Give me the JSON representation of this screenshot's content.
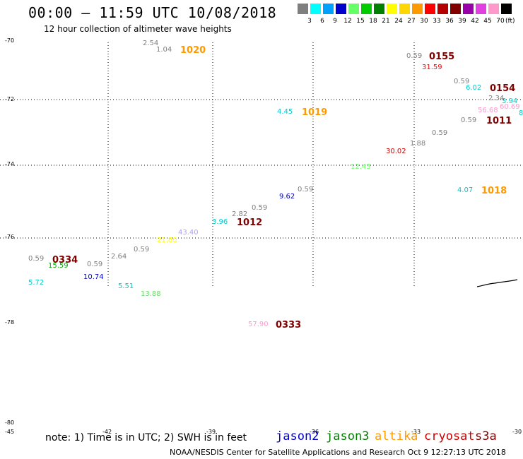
{
  "header": {
    "title": "00:00 – 11:59 UTC 10/08/2018",
    "subtitle": "12 hour collection of altimeter wave heights"
  },
  "color_scale": {
    "unit": "(ft)",
    "swatches": [
      {
        "color": "#7f7f7f",
        "label": "3"
      },
      {
        "color": "#00ffff",
        "label": "6"
      },
      {
        "color": "#00a0ff",
        "label": "9"
      },
      {
        "color": "#0000cd",
        "label": "12"
      },
      {
        "color": "#66ff66",
        "label": "15"
      },
      {
        "color": "#00cc00",
        "label": "18"
      },
      {
        "color": "#008000",
        "label": "21"
      },
      {
        "color": "#ffff00",
        "label": "24"
      },
      {
        "color": "#ffd700",
        "label": "27"
      },
      {
        "color": "#ff9900",
        "label": "30"
      },
      {
        "color": "#ff0000",
        "label": "33"
      },
      {
        "color": "#b30000",
        "label": "36"
      },
      {
        "color": "#800000",
        "label": "39"
      },
      {
        "color": "#9900aa",
        "label": "42"
      },
      {
        "color": "#e040e0",
        "label": "45"
      },
      {
        "color": "#ff99cc",
        "label": "70"
      },
      {
        "color": "#000000",
        "label": ""
      }
    ]
  },
  "y_axis_labels": [
    "-70",
    "-72",
    "-74",
    "-76",
    "-78",
    "-80"
  ],
  "x_axis_labels": [
    "-45",
    "-42",
    "-39",
    "-36",
    "-33",
    "-30"
  ],
  "wave_heights": [
    {
      "text": "2.54",
      "color": "#7f7f7f"
    },
    {
      "text": "1.04",
      "color": "#7f7f7f"
    },
    {
      "text": "0.59",
      "color": "#7f7f7f"
    },
    {
      "text": "31.59",
      "color": "#ff0000"
    },
    {
      "text": "0.59",
      "color": "#7f7f7f"
    },
    {
      "text": "6.02",
      "color": "#00cccc"
    },
    {
      "text": "2.34",
      "color": "#7f7f7f"
    },
    {
      "text": "3.94",
      "color": "#00cccc"
    },
    {
      "text": "56.68",
      "color": "#ff99cc"
    },
    {
      "text": "60.69",
      "color": "#ff99cc"
    },
    {
      "text": "8",
      "color": "#00cccc"
    },
    {
      "text": "0.59",
      "color": "#7f7f7f"
    },
    {
      "text": "4.45",
      "color": "#00cccc"
    },
    {
      "text": "0.59",
      "color": "#7f7f7f"
    },
    {
      "text": "1.88",
      "color": "#7f7f7f"
    },
    {
      "text": "30.02",
      "color": "#cc0000"
    },
    {
      "text": "12.43",
      "color": "#66ff66"
    },
    {
      "text": "4.07",
      "color": "#00cccc"
    },
    {
      "text": "0.59",
      "color": "#7f7f7f"
    },
    {
      "text": "9.62",
      "color": "#0000cd"
    },
    {
      "text": "0.59",
      "color": "#7f7f7f"
    },
    {
      "text": "2.82",
      "color": "#7f7f7f"
    },
    {
      "text": "3.96",
      "color": "#00cccc"
    },
    {
      "text": "43.40",
      "color": "#b0a0ff"
    },
    {
      "text": "21.80",
      "color": "#ffff00"
    },
    {
      "text": "0.59",
      "color": "#7f7f7f"
    },
    {
      "text": "2.64",
      "color": "#7f7f7f"
    },
    {
      "text": "0.59",
      "color": "#7f7f7f"
    },
    {
      "text": "15.59",
      "color": "#00aa00"
    },
    {
      "text": "0.59",
      "color": "#7f7f7f"
    },
    {
      "text": "10.74",
      "color": "#0000cd"
    },
    {
      "text": "5.72",
      "color": "#00cccc"
    },
    {
      "text": "5.51",
      "color": "#00cccc"
    },
    {
      "text": "13.88",
      "color": "#66dd66"
    },
    {
      "text": "57.90",
      "color": "#ff99cc"
    }
  ],
  "pass_times": [
    {
      "text": "1020",
      "color": "#ff9900"
    },
    {
      "text": "0155",
      "color": "#800000"
    },
    {
      "text": "0154",
      "color": "#800000"
    },
    {
      "text": "1011",
      "color": "#800000"
    },
    {
      "text": "1019",
      "color": "#ff9900"
    },
    {
      "text": "1018",
      "color": "#ff9900"
    },
    {
      "text": "1012",
      "color": "#800000"
    },
    {
      "text": "0334",
      "color": "#800000"
    },
    {
      "text": "0333",
      "color": "#800000"
    }
  ],
  "footer": {
    "note": "note: 1) Time is in UTC; 2) SWH is in feet",
    "satellites": [
      {
        "name": "jason2",
        "color": "#0000cd"
      },
      {
        "name": "jason3",
        "color": "#008000"
      },
      {
        "name": "altika",
        "color": "#ff9900"
      },
      {
        "name": "cryosat",
        "color": "#cc0000"
      },
      {
        "name": "s3a",
        "color": "#800000"
      }
    ],
    "credit": "NOAA/NESDIS Center for Satellite Applications and Research     Oct  9 12:27:13 UTC 2018"
  }
}
